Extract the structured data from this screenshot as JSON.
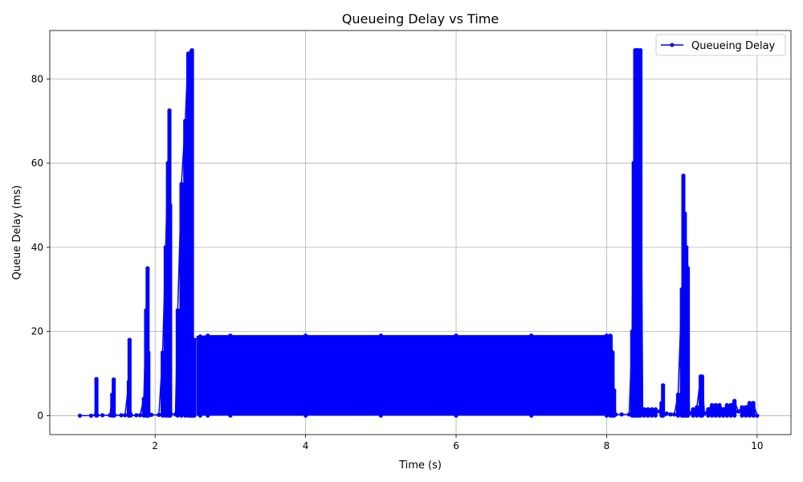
{
  "chart_data": {
    "type": "line",
    "title": "Queueing Delay vs Time",
    "xlabel": "Time (s)",
    "ylabel": "Queue Delay (ms)",
    "xlim": [
      0.6,
      10.45
    ],
    "ylim": [
      -4.5,
      91.5
    ],
    "xticks": [
      2,
      4,
      6,
      8,
      10
    ],
    "yticks": [
      0,
      20,
      40,
      60,
      80
    ],
    "grid": true,
    "legend_position": "top-right",
    "series": [
      {
        "name": "Queueing Delay",
        "color": "#0000ff",
        "marker": "circle",
        "x": [
          1.0,
          1.15,
          1.21,
          1.22,
          1.23,
          1.3,
          1.4,
          1.43,
          1.45,
          1.46,
          1.55,
          1.6,
          1.65,
          1.66,
          1.67,
          1.68,
          1.75,
          1.8,
          1.85,
          1.88,
          1.9,
          1.91,
          1.92,
          1.95,
          2.05,
          2.1,
          2.14,
          2.17,
          2.19,
          2.2,
          2.21,
          2.27,
          2.3,
          2.35,
          2.4,
          2.44,
          2.46,
          2.48,
          2.49,
          2.5,
          2.52,
          2.6,
          2.7,
          3.0,
          4.0,
          5.0,
          6.0,
          7.0,
          8.0,
          8.05,
          8.08,
          8.1,
          8.12,
          8.2,
          8.3,
          8.34,
          8.36,
          8.38,
          8.4,
          8.42,
          8.45,
          8.48,
          8.5,
          8.55,
          8.6,
          8.65,
          8.7,
          8.73,
          8.75,
          8.77,
          8.8,
          8.85,
          8.9,
          8.95,
          9.0,
          9.02,
          9.04,
          9.06,
          9.08,
          9.1,
          9.15,
          9.2,
          9.25,
          9.27,
          9.3,
          9.35,
          9.4,
          9.45,
          9.5,
          9.55,
          9.6,
          9.65,
          9.7,
          9.75,
          9.8,
          9.85,
          9.9,
          9.95,
          10.0
        ],
        "y": [
          0.0,
          0.0,
          0.2,
          8.7,
          0.1,
          0.1,
          0.1,
          5.0,
          8.6,
          0.1,
          0.1,
          0.1,
          8.0,
          18.0,
          0.5,
          0.1,
          0.1,
          0.1,
          4.0,
          25.0,
          35.0,
          15.0,
          0.3,
          0.2,
          0.2,
          15.0,
          40.0,
          60.0,
          72.5,
          50.0,
          0.4,
          0.3,
          25.0,
          55.0,
          70.0,
          86.0,
          85.0,
          86.5,
          86.8,
          18.0,
          18.0,
          18.8,
          19.0,
          19.0,
          19.0,
          19.0,
          19.0,
          19.0,
          19.0,
          19.0,
          15.0,
          6.0,
          0.3,
          0.3,
          0.3,
          20.0,
          60.0,
          86.8,
          86.8,
          86.8,
          86.8,
          0.5,
          1.5,
          1.5,
          1.5,
          1.5,
          1.0,
          3.0,
          7.2,
          0.3,
          0.5,
          0.3,
          0.3,
          5.0,
          30.0,
          57.0,
          48.0,
          40.0,
          35.0,
          0.5,
          1.5,
          2.0,
          9.3,
          9.3,
          0.5,
          1.5,
          2.5,
          2.5,
          2.5,
          1.5,
          2.5,
          2.5,
          3.5,
          1.0,
          2.0,
          2.0,
          3.0,
          3.0,
          0.0
        ],
        "dense_band": {
          "x_start": 2.55,
          "x_end": 8.08,
          "y_min": 0,
          "y_max": 19.0
        }
      }
    ]
  }
}
